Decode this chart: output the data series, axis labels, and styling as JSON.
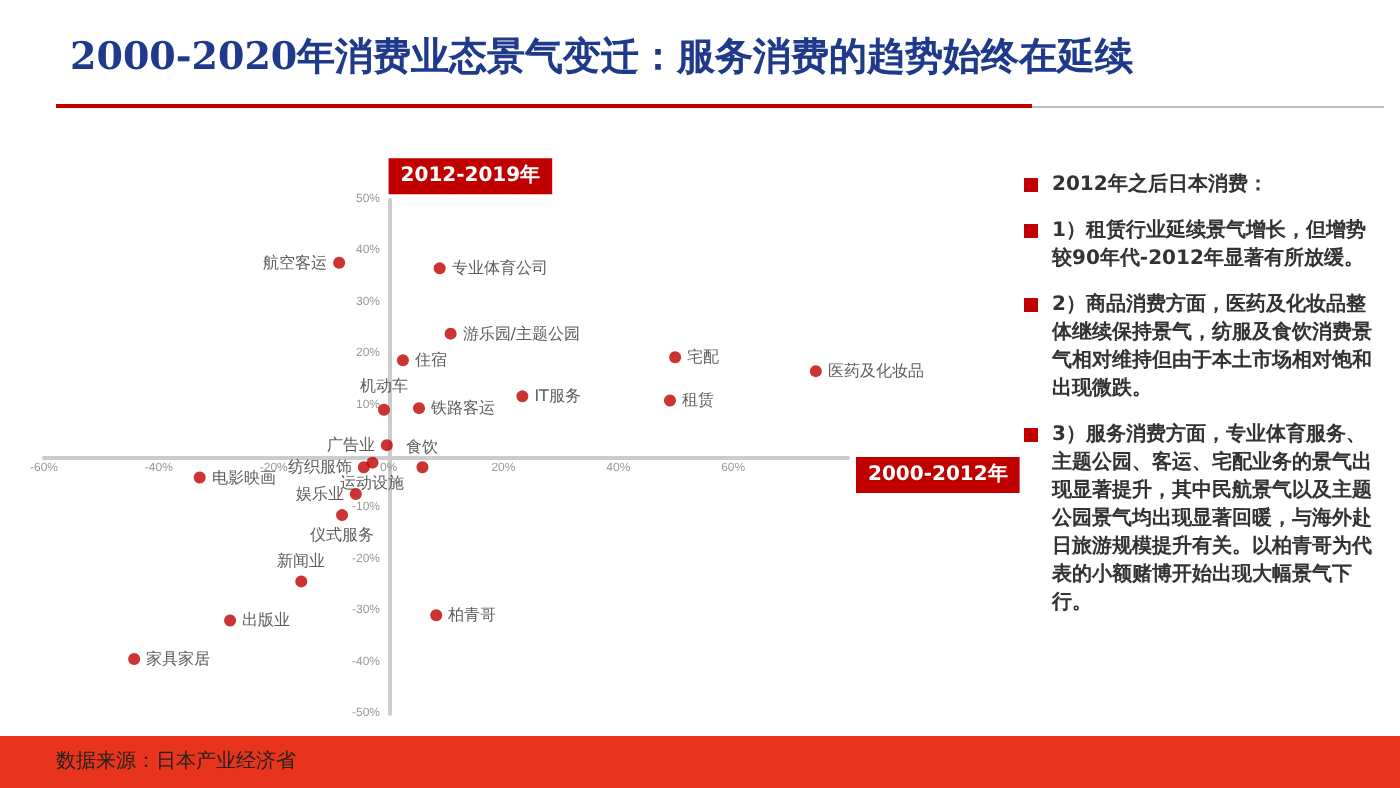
{
  "chart_data": [
    {
      "type": "scatter",
      "title": "2000-2020年消费业态景气变迁：服务消费的趋势始终在延续",
      "xlabel": "2000-2012年",
      "ylabel": "2012-2019年",
      "marker": "circle",
      "xlim": [
        -60,
        80
      ],
      "ylim": [
        -50,
        50
      ],
      "xticks": [
        {
          "value": -60,
          "label": "-60%"
        },
        {
          "value": -40,
          "label": "-40%"
        },
        {
          "value": -20,
          "label": "-20%"
        },
        {
          "value": 0,
          "label": "0%"
        },
        {
          "value": 20,
          "label": "20%"
        },
        {
          "value": 40,
          "label": "40%"
        },
        {
          "value": 60,
          "label": "60%"
        }
      ],
      "yticks": [
        {
          "value": -50,
          "label": "-50%"
        },
        {
          "value": -40,
          "label": "-40%"
        },
        {
          "value": -30,
          "label": "-30%"
        },
        {
          "value": -20,
          "label": "-20%"
        },
        {
          "value": -10,
          "label": "-10%"
        },
        {
          "value": 10,
          "label": "10%"
        },
        {
          "value": 20,
          "label": "20%"
        },
        {
          "value": 30,
          "label": "30%"
        },
        {
          "value": 40,
          "label": "40%"
        },
        {
          "value": 50,
          "label": "50%"
        }
      ],
      "annotations": [
        "数据来源：日本产业经济省"
      ],
      "series": [
        {
          "name": "航空客运",
          "color": "#c00000",
          "x": [
            -8.6
          ],
          "values": [
            37.8
          ]
        },
        {
          "name": "专业体育公司",
          "color": "#c00000",
          "x": [
            8.9
          ],
          "values": [
            36.7
          ]
        },
        {
          "name": "游乐园/主题公园",
          "color": "#c00000",
          "x": [
            10.8
          ],
          "values": [
            24
          ]
        },
        {
          "name": "住宿",
          "color": "#c00000",
          "x": [
            2.5
          ],
          "values": [
            18.8
          ]
        },
        {
          "name": "机动车",
          "color": "#c00000",
          "x": [
            -0.8
          ],
          "values": [
            9.2
          ]
        },
        {
          "name": "铁路客运",
          "color": "#c00000",
          "x": [
            5.3
          ],
          "values": [
            9.5
          ]
        },
        {
          "name": "广告业",
          "color": "#c00000",
          "x": [
            -0.3
          ],
          "values": [
            2.3
          ]
        },
        {
          "name": "食饮",
          "color": "#c00000",
          "x": [
            5.9
          ],
          "values": [
            -2
          ]
        },
        {
          "name": "纺织服饰",
          "color": "#c00000",
          "x": [
            -4.3
          ],
          "values": [
            -2
          ]
        },
        {
          "name": "运动设施",
          "color": "#c00000",
          "x": [
            -2.8
          ],
          "values": [
            -1.1
          ]
        },
        {
          "name": "电影映画",
          "color": "#c00000",
          "x": [
            -32.9
          ],
          "values": [
            -4
          ]
        },
        {
          "name": "娱乐业",
          "color": "#c00000",
          "x": [
            -5.7
          ],
          "values": [
            -7.2
          ]
        },
        {
          "name": "仪式服务",
          "color": "#c00000",
          "x": [
            -8.1
          ],
          "values": [
            -11.3
          ]
        },
        {
          "name": "新闻业",
          "color": "#c00000",
          "x": [
            -15.2
          ],
          "values": [
            -24.2
          ]
        },
        {
          "name": "出版业",
          "color": "#c00000",
          "x": [
            -27.6
          ],
          "values": [
            -31.8
          ]
        },
        {
          "name": "柏青哥",
          "color": "#c00000",
          "x": [
            8.3
          ],
          "values": [
            -30.8
          ]
        },
        {
          "name": "家具家居",
          "color": "#c00000",
          "x": [
            -44.3
          ],
          "values": [
            -39.3
          ]
        },
        {
          "name": "宅配",
          "color": "#c00000",
          "x": [
            49.9
          ],
          "values": [
            19.4
          ]
        },
        {
          "name": "医药及化妆品",
          "color": "#c00000",
          "x": [
            74.4
          ],
          "values": [
            16.7
          ]
        },
        {
          "name": "IT服务",
          "color": "#c00000",
          "x": [
            23.3
          ],
          "values": [
            11.8
          ]
        },
        {
          "name": "租赁",
          "color": "#c00000",
          "x": [
            49
          ],
          "values": [
            11
          ]
        }
      ]
    },
    {
      "type": "other",
      "title": "2012年之后日本消费：",
      "annotations": [
        "1）租赁行业延续景气增长，但增势较90年代-2012年显著有所放缓。",
        "2）商品消费方面，医药及化妆品整体继续保持景气，纺服及食饮消费景气相对维持但由于本土市场相对饱和出现微跌。",
        "3）服务消费方面，专业体育服务、主题公园、客运、宅配业务的景气出现显著提升，其中民航景气以及主题公园景气均出现显著回暖，与海外赴日旅游规模提升有关。以柏青哥为代表的小额赌博开始出现大幅景气下行。"
      ]
    }
  ]
}
